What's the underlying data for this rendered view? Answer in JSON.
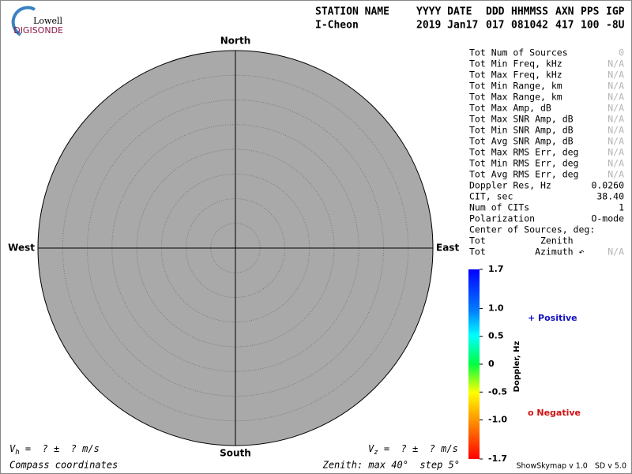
{
  "logo": {
    "line1": "Lowell",
    "line2": "DIGISONDE"
  },
  "header": {
    "labels": [
      "STATION NAME",
      "YYYY DATE",
      "DDD",
      "HHMMSS",
      "AXN",
      "PPS",
      "IGP"
    ],
    "values": [
      "I-Cheon",
      "2019 Jan17",
      "017",
      "081042",
      "417",
      "100",
      "-8U"
    ]
  },
  "compass": {
    "north": "North",
    "south": "South",
    "east": "East",
    "west": "West"
  },
  "stats": [
    {
      "label": "Tot Num of Sources",
      "value": "0",
      "dim": true
    },
    {
      "label": "Tot Min Freq, kHz",
      "value": "N/A",
      "dim": true
    },
    {
      "label": "Tot Max Freq, kHz",
      "value": "N/A",
      "dim": true
    },
    {
      "label": "Tot Min Range, km",
      "value": "N/A",
      "dim": true
    },
    {
      "label": "Tot Max Range, km",
      "value": "N/A",
      "dim": true
    },
    {
      "label": "Tot Max Amp, dB",
      "value": "N/A",
      "dim": true
    },
    {
      "label": "Tot Max SNR Amp, dB",
      "value": "N/A",
      "dim": true
    },
    {
      "label": "Tot Min SNR Amp, dB",
      "value": "N/A",
      "dim": true
    },
    {
      "label": "Tot Avg SNR Amp, dB",
      "value": "N/A",
      "dim": true
    },
    {
      "label": "Tot Max RMS Err, deg",
      "value": "N/A",
      "dim": true
    },
    {
      "label": "Tot Min RMS Err, deg",
      "value": "N/A",
      "dim": true
    },
    {
      "label": "Tot Avg RMS Err, deg",
      "value": "N/A",
      "dim": true
    },
    {
      "label": "Doppler Res, Hz",
      "value": "0.0260",
      "dim": false
    },
    {
      "label": "CIT, sec",
      "value": "38.40",
      "dim": false
    },
    {
      "label": "Num of CITs",
      "value": "1",
      "dim": false
    },
    {
      "label": "Polarization",
      "value": "O-mode",
      "dim": false
    },
    {
      "label": "Center of Sources, deg:"
    },
    {
      "label": "Tot          Zenith"
    },
    {
      "label": "Tot         Azimuth ↶",
      "value": "N/A",
      "dim": true
    }
  ],
  "colorbar": {
    "title": "Doppler, Hz",
    "lim": [
      -1.7,
      1.7
    ],
    "ticks": [
      {
        "value": 1.7,
        "label": "1.7"
      },
      {
        "value": 1.0,
        "label": "1.0"
      },
      {
        "value": 0.5,
        "label": "0.5"
      },
      0,
      {
        "value": -0.5,
        "label": "-0.5"
      },
      {
        "value": -1.0,
        "label": "-1.0"
      },
      {
        "value": -1.7,
        "label": "-1.7"
      }
    ]
  },
  "legend": {
    "positive": "+ Positive",
    "negative": "o Negative"
  },
  "footer": {
    "vh": {
      "symbol": "V",
      "sub": "h",
      "text": " =  ? ±  ? m/s"
    },
    "vz": {
      "symbol": "V",
      "sub": "z",
      "text": " =  ? ±  ? m/s"
    },
    "coords": "Compass coordinates",
    "zenith": "Zenith: max 40°  step 5°",
    "version": "ShowSkymap v 1.0   SD v 5.0"
  }
}
